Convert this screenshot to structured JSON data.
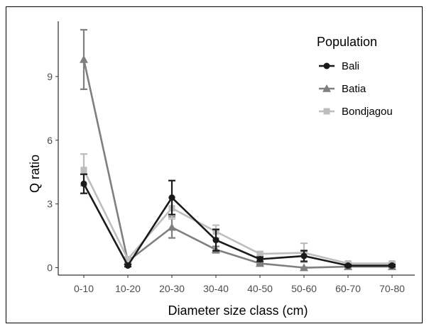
{
  "chart_data": {
    "type": "line",
    "title": "",
    "xlabel": "Diameter size class (cm)",
    "ylabel": "Q ratio",
    "categories": [
      "0-10",
      "10-20",
      "20-30",
      "30-40",
      "40-50",
      "50-60",
      "60-70",
      "70-80"
    ],
    "yticks": [
      "0",
      "3",
      "6",
      "9"
    ],
    "ylim": [
      -0.35,
      11.6
    ],
    "grid": false,
    "legend": {
      "title": "Population",
      "position": "top-right"
    },
    "series": [
      {
        "name": "Batia",
        "color": "#7f7f7f",
        "marker": "triangle",
        "values": [
          9.8,
          0.3,
          1.9,
          0.85,
          0.2,
          0.0,
          0.05,
          0.05
        ],
        "errors": [
          1.4,
          0.1,
          0.5,
          0.15,
          0.05,
          0.02,
          0.02,
          0.02
        ]
      },
      {
        "name": "Bondjagou",
        "color": "#bdbdbd",
        "marker": "square",
        "values": [
          4.6,
          0.4,
          2.8,
          1.7,
          0.65,
          0.7,
          0.2,
          0.2
        ],
        "errors": [
          0.75,
          0.1,
          0.5,
          0.3,
          0.1,
          0.45,
          0.05,
          0.05
        ]
      },
      {
        "name": "Bali",
        "color": "#1a1a1a",
        "marker": "circle",
        "values": [
          3.95,
          0.1,
          3.3,
          1.3,
          0.4,
          0.55,
          0.1,
          0.1
        ],
        "errors": [
          0.45,
          0.05,
          0.8,
          0.5,
          0.1,
          0.25,
          0.05,
          0.05
        ]
      }
    ],
    "legend_order": [
      "Bali",
      "Batia",
      "Bondjagou"
    ]
  }
}
